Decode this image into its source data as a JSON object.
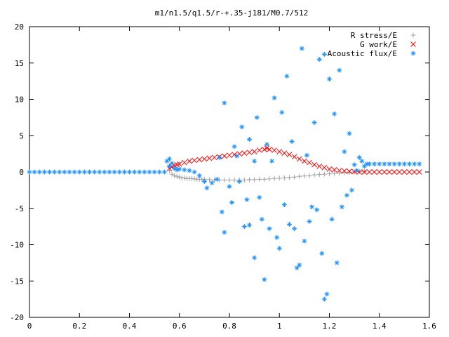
{
  "chart_data": {
    "type": "scatter",
    "title": "m1/n1.5/q1.5/r-+.35-j181/M0.7/512",
    "xlabel": "",
    "ylabel": "",
    "xlim": [
      0,
      1.6
    ],
    "ylim": [
      -20,
      20
    ],
    "x_ticks": [
      0,
      0.2,
      0.4,
      0.6,
      0.8,
      1,
      1.2,
      1.4,
      1.6
    ],
    "x_tick_labels": [
      "0",
      "0.2",
      "0.4",
      "0.6",
      "0.8",
      "1",
      "1.2",
      "1.4",
      "1.6"
    ],
    "y_ticks": [
      -20,
      -15,
      -10,
      -5,
      0,
      5,
      10,
      15,
      20
    ],
    "y_tick_labels": [
      "-20",
      "-15",
      "-10",
      "-5",
      "0",
      "5",
      "10",
      "15",
      "20"
    ],
    "grid": false,
    "legend_position": "top-right",
    "series": [
      {
        "name": "R stress/E",
        "marker": "plus",
        "color": "#a0a0a0",
        "points": [
          [
            0.56,
            0.2
          ],
          [
            0.57,
            -0.3
          ],
          [
            0.58,
            -0.5
          ],
          [
            0.59,
            -0.6
          ],
          [
            0.6,
            -0.7
          ],
          [
            0.61,
            -0.8
          ],
          [
            0.62,
            -0.8
          ],
          [
            0.63,
            -0.9
          ],
          [
            0.64,
            -0.9
          ],
          [
            0.65,
            -0.9
          ],
          [
            0.66,
            -0.95
          ],
          [
            0.67,
            -1.0
          ],
          [
            0.68,
            -1.0
          ],
          [
            0.69,
            -1.0
          ],
          [
            0.7,
            -1.0
          ],
          [
            0.72,
            -1.05
          ],
          [
            0.74,
            -1.1
          ],
          [
            0.76,
            -1.1
          ],
          [
            0.78,
            -1.1
          ],
          [
            0.8,
            -1.1
          ],
          [
            0.82,
            -1.1
          ],
          [
            0.84,
            -1.1
          ],
          [
            0.86,
            -1.1
          ],
          [
            0.88,
            -1.05
          ],
          [
            0.9,
            -1.05
          ],
          [
            0.92,
            -1.0
          ],
          [
            0.94,
            -1.0
          ],
          [
            0.96,
            -0.95
          ],
          [
            0.98,
            -0.9
          ],
          [
            1.0,
            -0.85
          ],
          [
            1.02,
            -0.8
          ],
          [
            1.04,
            -0.75
          ],
          [
            1.06,
            -0.7
          ],
          [
            1.08,
            -0.6
          ],
          [
            1.1,
            -0.55
          ],
          [
            1.12,
            -0.5
          ],
          [
            1.14,
            -0.4
          ],
          [
            1.16,
            -0.35
          ],
          [
            1.18,
            -0.3
          ],
          [
            1.2,
            -0.25
          ],
          [
            1.22,
            -0.2
          ],
          [
            1.24,
            -0.15
          ],
          [
            1.26,
            -0.1
          ],
          [
            1.28,
            -0.05
          ],
          [
            1.3,
            0.0
          ],
          [
            1.32,
            0.05
          ],
          [
            1.34,
            0.05
          ]
        ]
      },
      {
        "name": "G work/E",
        "marker": "cross",
        "color": "#ff0000",
        "points": [
          [
            0.56,
            0.5
          ],
          [
            0.57,
            0.7
          ],
          [
            0.58,
            0.9
          ],
          [
            0.59,
            1.0
          ],
          [
            0.6,
            1.1
          ],
          [
            0.62,
            1.3
          ],
          [
            0.64,
            1.5
          ],
          [
            0.66,
            1.6
          ],
          [
            0.68,
            1.7
          ],
          [
            0.7,
            1.8
          ],
          [
            0.72,
            1.9
          ],
          [
            0.74,
            2.0
          ],
          [
            0.76,
            2.1
          ],
          [
            0.78,
            2.2
          ],
          [
            0.8,
            2.3
          ],
          [
            0.82,
            2.4
          ],
          [
            0.84,
            2.5
          ],
          [
            0.86,
            2.6
          ],
          [
            0.88,
            2.7
          ],
          [
            0.9,
            2.8
          ],
          [
            0.92,
            3.0
          ],
          [
            0.94,
            3.1
          ],
          [
            0.95,
            3.3
          ],
          [
            0.96,
            3.1
          ],
          [
            0.98,
            3.0
          ],
          [
            1.0,
            2.8
          ],
          [
            1.02,
            2.6
          ],
          [
            1.04,
            2.4
          ],
          [
            1.06,
            2.1
          ],
          [
            1.08,
            1.8
          ],
          [
            1.1,
            1.5
          ],
          [
            1.12,
            1.3
          ],
          [
            1.14,
            1.0
          ],
          [
            1.16,
            0.8
          ],
          [
            1.18,
            0.6
          ],
          [
            1.2,
            0.4
          ],
          [
            1.22,
            0.3
          ],
          [
            1.24,
            0.2
          ],
          [
            1.26,
            0.15
          ],
          [
            1.28,
            0.1
          ],
          [
            1.3,
            0.05
          ],
          [
            1.32,
            0.0
          ],
          [
            1.34,
            0.0
          ],
          [
            1.36,
            0.0
          ],
          [
            1.38,
            0.0
          ],
          [
            1.4,
            0.0
          ],
          [
            1.42,
            0.0
          ],
          [
            1.44,
            0.0
          ],
          [
            1.46,
            0.0
          ],
          [
            1.48,
            0.0
          ],
          [
            1.5,
            0.0
          ],
          [
            1.52,
            0.0
          ],
          [
            1.54,
            0.0
          ],
          [
            1.56,
            0.0
          ]
        ]
      },
      {
        "name": "Acoustic flux/E",
        "marker": "star",
        "color": "#1e90ff",
        "points": [
          [
            0.0,
            0.0
          ],
          [
            0.02,
            0.0
          ],
          [
            0.04,
            0.0
          ],
          [
            0.06,
            0.0
          ],
          [
            0.08,
            0.0
          ],
          [
            0.1,
            0.0
          ],
          [
            0.12,
            0.0
          ],
          [
            0.14,
            0.0
          ],
          [
            0.16,
            0.0
          ],
          [
            0.18,
            0.0
          ],
          [
            0.2,
            0.0
          ],
          [
            0.22,
            0.0
          ],
          [
            0.24,
            0.0
          ],
          [
            0.26,
            0.0
          ],
          [
            0.28,
            0.0
          ],
          [
            0.3,
            0.0
          ],
          [
            0.32,
            0.0
          ],
          [
            0.34,
            0.0
          ],
          [
            0.36,
            0.0
          ],
          [
            0.38,
            0.0
          ],
          [
            0.4,
            0.0
          ],
          [
            0.42,
            0.0
          ],
          [
            0.44,
            0.0
          ],
          [
            0.46,
            0.0
          ],
          [
            0.48,
            0.0
          ],
          [
            0.5,
            0.0
          ],
          [
            0.52,
            0.0
          ],
          [
            0.54,
            0.0
          ],
          [
            0.55,
            1.5
          ],
          [
            0.56,
            1.8
          ],
          [
            0.56,
            0.8
          ],
          [
            0.57,
            1.2
          ],
          [
            0.58,
            0.5
          ],
          [
            0.59,
            0.3
          ],
          [
            0.6,
            0.4
          ],
          [
            0.62,
            0.3
          ],
          [
            0.64,
            0.2
          ],
          [
            0.66,
            0.0
          ],
          [
            0.68,
            -0.5
          ],
          [
            0.7,
            -1.3
          ],
          [
            0.71,
            -2.2
          ],
          [
            0.73,
            -1.5
          ],
          [
            0.75,
            -1.0
          ],
          [
            0.76,
            2.0
          ],
          [
            0.77,
            -5.5
          ],
          [
            0.78,
            9.5
          ],
          [
            0.78,
            -8.3
          ],
          [
            0.8,
            -2.0
          ],
          [
            0.81,
            -4.2
          ],
          [
            0.82,
            3.5
          ],
          [
            0.83,
            2.2
          ],
          [
            0.84,
            -1.3
          ],
          [
            0.85,
            6.2
          ],
          [
            0.86,
            -7.5
          ],
          [
            0.87,
            -3.8
          ],
          [
            0.88,
            -7.3
          ],
          [
            0.88,
            4.5
          ],
          [
            0.9,
            -11.8
          ],
          [
            0.9,
            1.5
          ],
          [
            0.91,
            7.5
          ],
          [
            0.92,
            -3.5
          ],
          [
            0.93,
            -6.5
          ],
          [
            0.94,
            -14.8
          ],
          [
            0.95,
            3.8
          ],
          [
            0.96,
            -7.8
          ],
          [
            0.97,
            1.5
          ],
          [
            0.98,
            10.2
          ],
          [
            0.99,
            -9.0
          ],
          [
            1.0,
            -10.5
          ],
          [
            1.01,
            8.2
          ],
          [
            1.02,
            -4.5
          ],
          [
            1.03,
            13.2
          ],
          [
            1.04,
            -7.2
          ],
          [
            1.05,
            4.2
          ],
          [
            1.06,
            -7.8
          ],
          [
            1.07,
            -13.2
          ],
          [
            1.08,
            -12.8
          ],
          [
            1.09,
            17.0
          ],
          [
            1.1,
            -9.5
          ],
          [
            1.11,
            2.3
          ],
          [
            1.12,
            -6.8
          ],
          [
            1.13,
            -4.8
          ],
          [
            1.14,
            6.8
          ],
          [
            1.15,
            -5.2
          ],
          [
            1.16,
            15.5
          ],
          [
            1.17,
            -11.2
          ],
          [
            1.18,
            16.2
          ],
          [
            1.18,
            -17.5
          ],
          [
            1.19,
            -16.8
          ],
          [
            1.2,
            12.8
          ],
          [
            1.21,
            -6.5
          ],
          [
            1.22,
            8.0
          ],
          [
            1.23,
            -12.5
          ],
          [
            1.24,
            14.0
          ],
          [
            1.25,
            -4.8
          ],
          [
            1.26,
            2.8
          ],
          [
            1.27,
            -3.2
          ],
          [
            1.28,
            5.3
          ],
          [
            1.29,
            -2.5
          ],
          [
            1.3,
            1.0
          ],
          [
            1.31,
            0.2
          ],
          [
            1.32,
            2.0
          ],
          [
            1.33,
            1.5
          ],
          [
            1.34,
            0.8
          ],
          [
            1.35,
            1.1
          ],
          [
            1.36,
            1.1
          ],
          [
            1.38,
            1.1
          ],
          [
            1.4,
            1.1
          ],
          [
            1.42,
            1.1
          ],
          [
            1.44,
            1.1
          ],
          [
            1.46,
            1.1
          ],
          [
            1.48,
            1.1
          ],
          [
            1.5,
            1.1
          ],
          [
            1.52,
            1.1
          ],
          [
            1.54,
            1.1
          ],
          [
            1.56,
            1.1
          ]
        ]
      }
    ]
  }
}
